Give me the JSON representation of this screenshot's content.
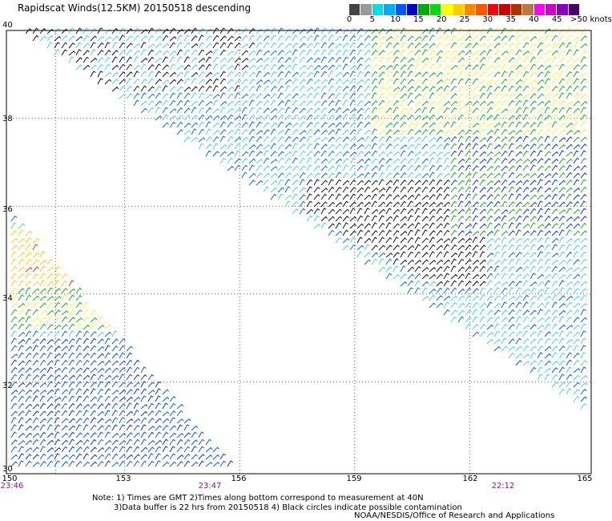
{
  "title": "Rapidscat Winds(12.5KM) 20150518 descending",
  "colorbar": {
    "colors": [
      "#444444",
      "#999999",
      "#00ddee",
      "#00aaff",
      "#0055ff",
      "#0000cc",
      "#00aa00",
      "#00dd00",
      "#ffff00",
      "#ffcc00",
      "#ff8800",
      "#ff5500",
      "#ff0000",
      "#cc0000",
      "#aa3300",
      "#bb7744",
      "#ff00ff",
      "#cc00cc",
      "#8800bb",
      "#440066"
    ],
    "labels": [
      "0",
      "5",
      "10",
      "15",
      "20",
      "25",
      "30",
      "35",
      "40",
      "45",
      ">50 knots"
    ]
  },
  "map": {
    "lat_labels": [
      "40",
      "38",
      "36",
      "34",
      "32",
      "30"
    ],
    "lon_labels": [
      "150",
      "153",
      "156",
      "159",
      "162",
      "165"
    ],
    "time_labels": [
      "23:46",
      "23:47",
      "22:12"
    ]
  },
  "notes": {
    "line1": "Note: 1) Times are GMT 2)Times along bottom correspond to measurement at 40N",
    "line2": "3)Data buffer is 22 hrs from 20150518 4) Black circles indicate possible contamination"
  },
  "credit": "NOAA/NESDIS/Office of Research and Applications"
}
